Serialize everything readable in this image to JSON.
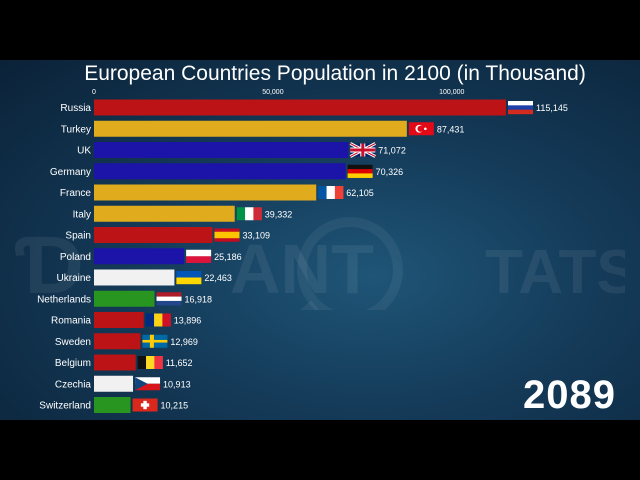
{
  "chart_data": {
    "type": "bar",
    "orientation": "horizontal",
    "title": "European Countries Population in 2100 (in Thousand)",
    "year": "2089",
    "xlim": [
      0,
      115145
    ],
    "x_ticks": [
      0,
      50000,
      100000
    ],
    "x_tick_labels": [
      "0",
      "50,000",
      "100,000"
    ],
    "categories": [
      "Russia",
      "Turkey",
      "UK",
      "Germany",
      "France",
      "Italy",
      "Spain",
      "Poland",
      "Ukraine",
      "Netherlands",
      "Romania",
      "Sweden",
      "Belgium",
      "Czechia",
      "Switzerland"
    ],
    "values": [
      115145,
      87431,
      71072,
      70326,
      62105,
      39332,
      33109,
      25186,
      22463,
      16918,
      13896,
      12969,
      11652,
      10913,
      10215
    ],
    "value_labels": [
      "115,145",
      "87,431",
      "71,072",
      "70,326",
      "62,105",
      "39,332",
      "33,109",
      "25,186",
      "22,463",
      "16,918",
      "13,896",
      "12,969",
      "11,652",
      "10,913",
      "10,215"
    ],
    "bar_colors": [
      "#bb1316",
      "#e0ac1d",
      "#1c13a8",
      "#1c13a8",
      "#e0ac1d",
      "#e0ac1d",
      "#bb1316",
      "#1c13a8",
      "#f1f1f1",
      "#27951f",
      "#bb1316",
      "#bb1316",
      "#bb1316",
      "#f1f1f1",
      "#27951f"
    ],
    "flags": [
      "russia-flag",
      "turkey-flag",
      "uk-flag",
      "germany-flag",
      "france-flag",
      "italy-flag",
      "spain-flag",
      "poland-flag",
      "ukraine-flag",
      "netherlands-flag",
      "romania-flag",
      "sweden-flag",
      "belgium-flag",
      "czechia-flag",
      "switzerland-flag"
    ],
    "grid": false,
    "legend": "none"
  },
  "watermark": {
    "text_left": "Ɗ",
    "text_mid": "ANT",
    "text_right": "TATS"
  }
}
